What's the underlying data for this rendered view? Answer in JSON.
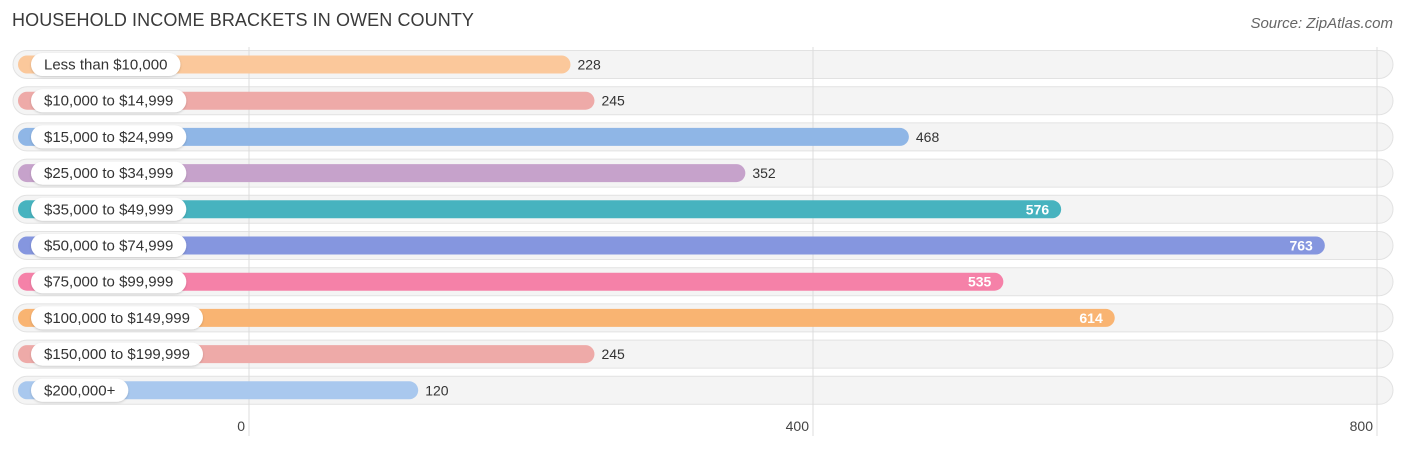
{
  "title": "HOUSEHOLD INCOME BRACKETS IN OWEN COUNTY",
  "source": "Source: ZipAtlas.com",
  "chart_data": {
    "type": "bar",
    "orientation": "horizontal",
    "title": "HOUSEHOLD INCOME BRACKETS IN OWEN COUNTY",
    "categories": [
      "Less than $10,000",
      "$10,000 to $14,999",
      "$15,000 to $24,999",
      "$25,000 to $34,999",
      "$35,000 to $49,999",
      "$50,000 to $74,999",
      "$75,000 to $99,999",
      "$100,000 to $149,999",
      "$150,000 to $199,999",
      "$200,000+"
    ],
    "values": [
      228,
      245,
      468,
      352,
      576,
      763,
      535,
      614,
      245,
      120
    ],
    "colors": [
      "#fbc89b",
      "#eeaaa8",
      "#8fb6e6",
      "#c6a2cb",
      "#47b3bf",
      "#8596df",
      "#f581a8",
      "#f9b472",
      "#eeaaa8",
      "#a9c8ee"
    ],
    "value_label_inside": [
      false,
      false,
      false,
      false,
      true,
      true,
      true,
      true,
      false,
      false
    ],
    "xlim": [
      0,
      800
    ],
    "xticks": [
      "0",
      "400",
      "800"
    ],
    "grid": true
  }
}
